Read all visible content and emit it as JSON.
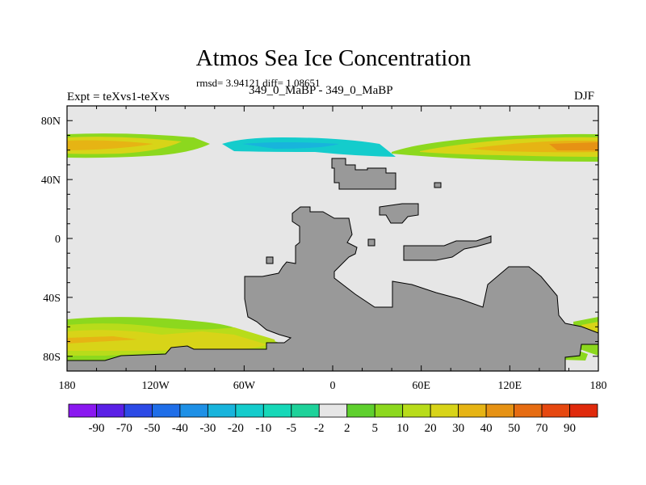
{
  "chart_data": {
    "type": "map",
    "title": "Atmos Sea Ice Concentration",
    "stats": "rmsd= 3.94121 diff= 1.08651",
    "left_label": "Expt = teXvs1-teXvs",
    "subtitle": "349_0_MaBP - 349_0_MaBP",
    "season": "DJF",
    "lon_range": [
      -180,
      180
    ],
    "lat_range": [
      -90,
      90
    ],
    "x_ticks": [
      {
        "value": -180,
        "label": "180"
      },
      {
        "value": -120,
        "label": "120W"
      },
      {
        "value": -60,
        "label": "60W"
      },
      {
        "value": 0,
        "label": "0"
      },
      {
        "value": 60,
        "label": "60E"
      },
      {
        "value": 120,
        "label": "120E"
      },
      {
        "value": 180,
        "label": "180"
      }
    ],
    "y_ticks": [
      {
        "value": 80,
        "label": "80N"
      },
      {
        "value": 40,
        "label": "40N"
      },
      {
        "value": 0,
        "label": "0"
      },
      {
        "value": -40,
        "label": "40S"
      },
      {
        "value": -80,
        "label": "80S"
      }
    ],
    "colorbar": {
      "levels": [
        "-90",
        "-70",
        "-50",
        "-40",
        "-30",
        "-20",
        "-10",
        "-5",
        "-2",
        "2",
        "5",
        "10",
        "20",
        "30",
        "40",
        "50",
        "70",
        "90"
      ],
      "colors": [
        "#8a18f0",
        "#5a20e6",
        "#2c4ae6",
        "#1f6ee8",
        "#1e90e6",
        "#18b4dc",
        "#14cccc",
        "#16d8b8",
        "#1ed29a",
        "#e6e6e6",
        "#5fd02e",
        "#8cd81e",
        "#b8dc1a",
        "#d8d418",
        "#e6b414",
        "#e69214",
        "#e66c12",
        "#e64810",
        "#e02a0c"
      ]
    },
    "background_color": "#e6e6e6",
    "land_color": "#999999"
  }
}
